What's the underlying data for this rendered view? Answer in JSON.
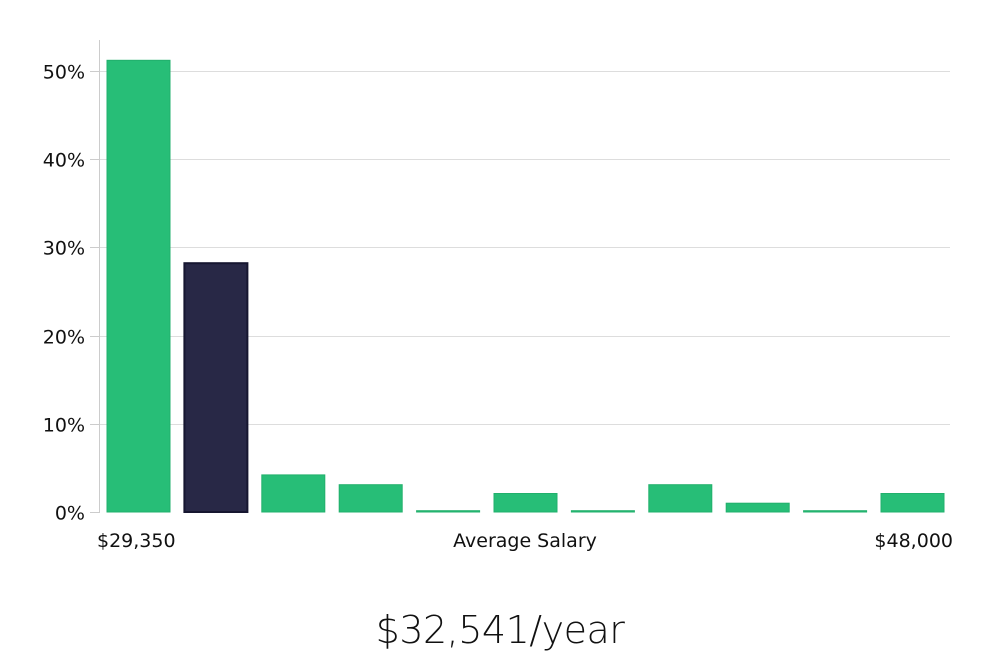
{
  "chart_data": {
    "type": "bar",
    "ylabel": "",
    "xlabel": "Average Salary",
    "x_range_labels": {
      "min": "$29,350",
      "max": "$48,000"
    },
    "y_ticks": [
      "0%",
      "10%",
      "20%",
      "30%",
      "40%",
      "50%"
    ],
    "ylim": [
      0,
      53.5
    ],
    "grid": true,
    "values": [
      51.2,
      28.2,
      4.2,
      3.1,
      0.15,
      2.1,
      0.15,
      3.1,
      1.0,
      0.15,
      2.1
    ],
    "highlight_index": 1,
    "colors": {
      "bar": "#27be77",
      "highlight": "#282846",
      "highlight_stroke": "#161630",
      "grid": "#dddddd",
      "axis": "#cccccc"
    }
  },
  "headline": "$32,541/year"
}
